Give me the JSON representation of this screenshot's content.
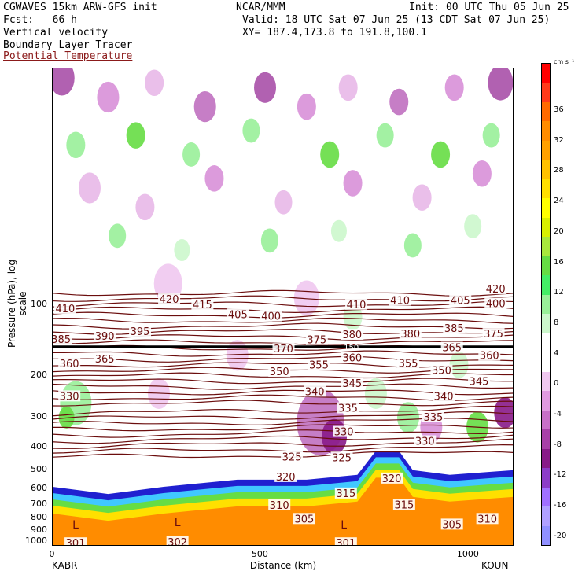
{
  "header": {
    "line1_left": "CGWAVES 15km ARW-GFS init",
    "line1_mid": "NCAR/MMM",
    "line1_right": "Init: 00 UTC Thu 05 Jun 25",
    "line2_left": "Fcst:   66 h",
    "line2_right": "Valid: 18 UTC Sat 07 Jun 25 (13 CDT Sat 07 Jun 25)",
    "line3_left": "Vertical velocity",
    "line3_right": "XY= 187.4,173.8 to 191.8,100.1",
    "line4_left": "Boundary Layer Tracer",
    "line5_left": "Potential Temperature",
    "line5_color": "#8b1a1a"
  },
  "colorbar": {
    "unit": "cm s⁻¹",
    "labels": [
      "36",
      "32",
      "28",
      "24",
      "20",
      "16",
      "12",
      "8",
      "4",
      "0",
      "-4",
      "-8",
      "-12",
      "-16",
      "-20"
    ],
    "colors": [
      "#ff0000",
      "#ff3a1a",
      "#ff6a00",
      "#ff8c00",
      "#ffa000",
      "#ffc200",
      "#ffe000",
      "#ffff00",
      "#d8f000",
      "#a8e83c",
      "#66dd44",
      "#44ee66",
      "#99f099",
      "#ccf7cc",
      "#ffffff",
      "#ffffff",
      "#f0c8f0",
      "#e09ae0",
      "#c870c8",
      "#a840a8",
      "#881a88",
      "#8c3cc8",
      "#a070ff",
      "#b0a0ff",
      "#9090ff"
    ]
  },
  "chart_data": {
    "type": "heatmap",
    "title": "Vertical velocity",
    "xlabel": "Distance (km)",
    "ylabel": "Pressure (hPa), log scale",
    "xlim": [
      0,
      1110
    ],
    "ylim_hPa": [
      1050,
      10
    ],
    "x_ticks": [
      "0",
      "500",
      "1000"
    ],
    "x_tick_values": [
      0,
      500,
      1000
    ],
    "y_ticks": [
      "100",
      "200",
      "300",
      "400",
      "500",
      "600",
      "700",
      "800",
      "900",
      "1000"
    ],
    "y_tick_values": [
      100,
      200,
      300,
      400,
      500,
      600,
      700,
      800,
      900,
      1000
    ],
    "endpoints": {
      "left": "KABR",
      "right": "KOUN"
    },
    "theta_labels": [
      {
        "text": "420",
        "x": 1065,
        "p": 86
      },
      {
        "text": "420",
        "x": 280,
        "p": 95
      },
      {
        "text": "415",
        "x": 360,
        "p": 100
      },
      {
        "text": "410",
        "x": 30,
        "p": 104
      },
      {
        "text": "410",
        "x": 730,
        "p": 100
      },
      {
        "text": "410",
        "x": 835,
        "p": 96
      },
      {
        "text": "405",
        "x": 445,
        "p": 110
      },
      {
        "text": "405",
        "x": 980,
        "p": 96
      },
      {
        "text": "400",
        "x": 525,
        "p": 112
      },
      {
        "text": "400",
        "x": 1065,
        "p": 99
      },
      {
        "text": "395",
        "x": 210,
        "p": 130
      },
      {
        "text": "390",
        "x": 125,
        "p": 136
      },
      {
        "text": "385",
        "x": 20,
        "p": 140
      },
      {
        "text": "385",
        "x": 965,
        "p": 126
      },
      {
        "text": "380",
        "x": 720,
        "p": 134
      },
      {
        "text": "380",
        "x": 860,
        "p": 133
      },
      {
        "text": "375",
        "x": 635,
        "p": 141
      },
      {
        "text": "375",
        "x": 1060,
        "p": 133
      },
      {
        "text": "370",
        "x": 555,
        "p": 154
      },
      {
        "text": "365",
        "x": 125,
        "p": 170
      },
      {
        "text": "365",
        "x": 960,
        "p": 152
      },
      {
        "text": "360",
        "x": 40,
        "p": 178
      },
      {
        "text": "360",
        "x": 720,
        "p": 168
      },
      {
        "text": "360",
        "x": 1050,
        "p": 164
      },
      {
        "text": "355",
        "x": 640,
        "p": 180
      },
      {
        "text": "355",
        "x": 855,
        "p": 177
      },
      {
        "text": "350",
        "x": 545,
        "p": 192
      },
      {
        "text": "350",
        "x": 935,
        "p": 190
      },
      {
        "text": "345",
        "x": 720,
        "p": 215
      },
      {
        "text": "345",
        "x": 1025,
        "p": 211
      },
      {
        "text": "340",
        "x": 630,
        "p": 233
      },
      {
        "text": "340",
        "x": 940,
        "p": 244
      },
      {
        "text": "335",
        "x": 710,
        "p": 274
      },
      {
        "text": "335",
        "x": 915,
        "p": 299
      },
      {
        "text": "330",
        "x": 40,
        "p": 244
      },
      {
        "text": "330",
        "x": 700,
        "p": 345
      },
      {
        "text": "330",
        "x": 895,
        "p": 378
      },
      {
        "text": "325",
        "x": 575,
        "p": 440
      },
      {
        "text": "325",
        "x": 695,
        "p": 443
      },
      {
        "text": "320",
        "x": 560,
        "p": 535
      },
      {
        "text": "320",
        "x": 815,
        "p": 543
      },
      {
        "text": "315",
        "x": 705,
        "p": 628
      },
      {
        "text": "315",
        "x": 845,
        "p": 703
      },
      {
        "text": "310",
        "x": 545,
        "p": 705
      },
      {
        "text": "310",
        "x": 1045,
        "p": 805
      },
      {
        "text": "305",
        "x": 605,
        "p": 805
      },
      {
        "text": "305",
        "x": 960,
        "p": 850
      },
      {
        "text": "301",
        "x": 55,
        "p": 1020
      },
      {
        "text": "302",
        "x": 300,
        "p": 1010
      },
      {
        "text": "301",
        "x": 705,
        "p": 1020
      }
    ],
    "highs_lows": [
      {
        "text": "L",
        "x": 55,
        "p": 880
      },
      {
        "text": "L",
        "x": 300,
        "p": 860
      },
      {
        "text": "L",
        "x": 700,
        "p": 880
      }
    ],
    "tropopause_label": {
      "text": "150",
      "p": 150
    }
  }
}
